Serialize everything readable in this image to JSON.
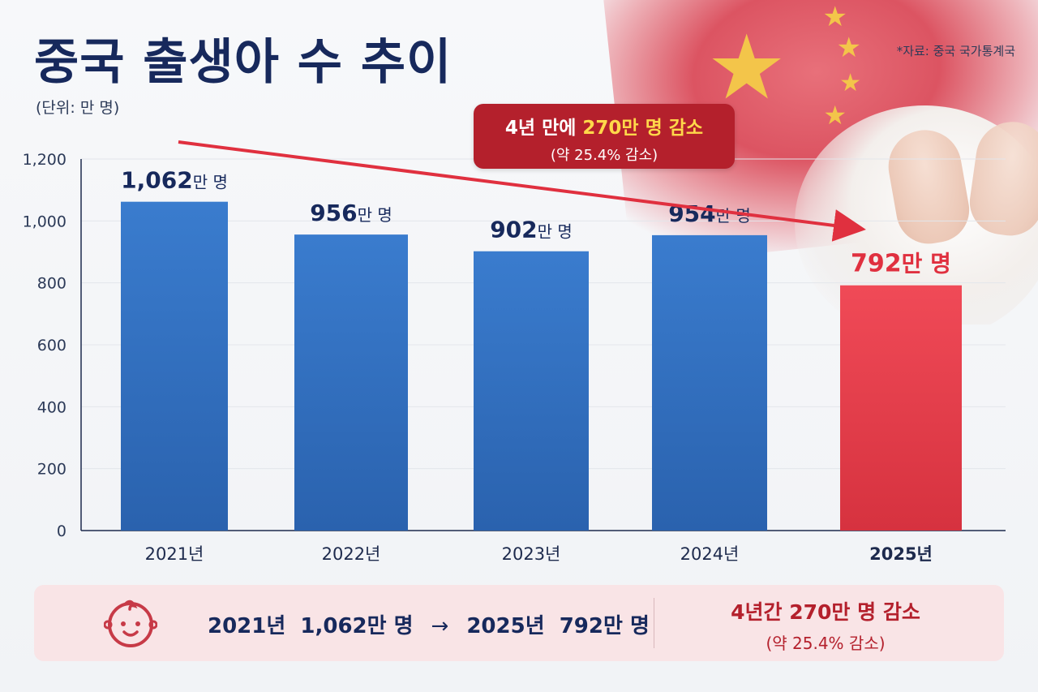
{
  "title": "중국 출생아 수 추이",
  "unit_label": "(단위: 만 명)",
  "source": "*자료: 중국 국가통계국",
  "callout": {
    "line1_prefix": "4년 만에 ",
    "line1_highlight": "270만 명 감소",
    "line2": "(약 25.4% 감소)"
  },
  "chart_data": {
    "type": "bar",
    "categories": [
      "2021년",
      "2022년",
      "2023년",
      "2024년",
      "2025년"
    ],
    "values": [
      1062,
      956,
      902,
      954,
      792
    ],
    "data_labels": [
      {
        "num": "1,062",
        "suffix": "만 명"
      },
      {
        "num": "956",
        "suffix": "만 명"
      },
      {
        "num": "902",
        "suffix": "만 명"
      },
      {
        "num": "954",
        "suffix": "만 명"
      },
      {
        "num": "792",
        "suffix": "만 명"
      }
    ],
    "ylim": [
      0,
      1200
    ],
    "yticks": [
      0,
      200,
      400,
      600,
      800,
      1000,
      1200
    ],
    "ytick_labels": [
      "0",
      "200",
      "400",
      "600",
      "800",
      "1,000",
      "1,200"
    ],
    "grid": true,
    "colors": {
      "normal": "#3574c4",
      "normal_dark": "#2a62ae",
      "highlight": "#e8404e",
      "highlight_dark": "#d6323f",
      "label": "#17295c",
      "highlight_label": "#e0303f"
    },
    "highlight_index": 4
  },
  "summary_bar": {
    "from": "2021년  1,062만 명",
    "arrow": "→",
    "to": "2025년  792만 명",
    "result_line1": "4년간 270만 명 감소",
    "result_line2": "(약 25.4% 감소)",
    "icon": "baby-face-icon"
  }
}
